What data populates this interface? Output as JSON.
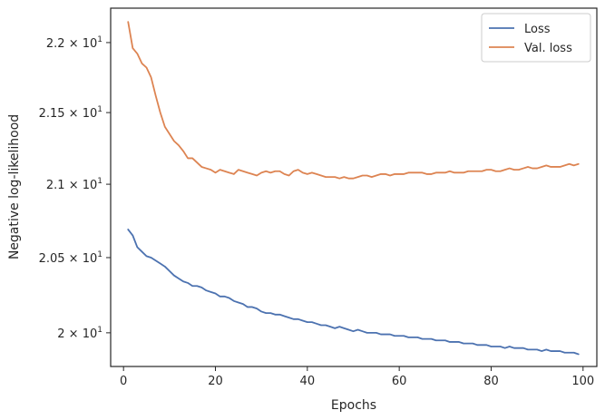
{
  "chart_data": {
    "type": "line",
    "title": "",
    "xlabel": "Epochs",
    "ylabel": "Negative log-likelihood",
    "xlim": [
      -2.8,
      103
    ],
    "ylim": [
      19.78,
      22.25
    ],
    "y_scale": "log",
    "x_ticks": [
      {
        "value": 0,
        "label": "0"
      },
      {
        "value": 20,
        "label": "20"
      },
      {
        "value": 40,
        "label": "40"
      },
      {
        "value": 60,
        "label": "60"
      },
      {
        "value": 80,
        "label": "80"
      },
      {
        "value": 100,
        "label": "100"
      }
    ],
    "y_ticks": [
      {
        "value": 20.0,
        "mantissa": "2",
        "exponent": "1"
      },
      {
        "value": 20.5,
        "mantissa": "2.05",
        "exponent": "1"
      },
      {
        "value": 21.0,
        "mantissa": "2.1",
        "exponent": "1"
      },
      {
        "value": 21.5,
        "mantissa": "2.15",
        "exponent": "1"
      },
      {
        "value": 22.0,
        "mantissa": "2.2",
        "exponent": "1"
      }
    ],
    "grid": false,
    "legend_position": "top-right",
    "series": [
      {
        "name": "Loss",
        "color": "#4c72b0",
        "x_start": 1,
        "values": [
          20.69,
          20.65,
          20.57,
          20.54,
          20.51,
          20.5,
          20.48,
          20.46,
          20.44,
          20.41,
          20.38,
          20.36,
          20.34,
          20.33,
          20.31,
          20.31,
          20.3,
          20.28,
          20.27,
          20.26,
          20.24,
          20.24,
          20.23,
          20.21,
          20.2,
          20.19,
          20.17,
          20.17,
          20.16,
          20.14,
          20.13,
          20.13,
          20.12,
          20.12,
          20.11,
          20.1,
          20.09,
          20.09,
          20.08,
          20.07,
          20.07,
          20.06,
          20.05,
          20.05,
          20.04,
          20.03,
          20.04,
          20.03,
          20.02,
          20.01,
          20.02,
          20.01,
          20.0,
          20.0,
          20.0,
          19.99,
          19.99,
          19.99,
          19.98,
          19.98,
          19.98,
          19.97,
          19.97,
          19.97,
          19.96,
          19.96,
          19.96,
          19.95,
          19.95,
          19.95,
          19.94,
          19.94,
          19.94,
          19.93,
          19.93,
          19.93,
          19.92,
          19.92,
          19.92,
          19.91,
          19.91,
          19.91,
          19.9,
          19.91,
          19.9,
          19.9,
          19.9,
          19.89,
          19.89,
          19.89,
          19.88,
          19.89,
          19.88,
          19.88,
          19.88,
          19.87,
          19.87,
          19.87,
          19.86
        ]
      },
      {
        "name": "Val. loss",
        "color": "#dd8452",
        "x_start": 1,
        "values": [
          22.15,
          21.96,
          21.92,
          21.85,
          21.82,
          21.75,
          21.62,
          21.5,
          21.4,
          21.35,
          21.3,
          21.27,
          21.23,
          21.18,
          21.18,
          21.15,
          21.12,
          21.11,
          21.1,
          21.08,
          21.1,
          21.09,
          21.08,
          21.07,
          21.1,
          21.09,
          21.08,
          21.07,
          21.06,
          21.08,
          21.09,
          21.08,
          21.09,
          21.09,
          21.07,
          21.06,
          21.09,
          21.1,
          21.08,
          21.07,
          21.08,
          21.07,
          21.06,
          21.05,
          21.05,
          21.05,
          21.04,
          21.05,
          21.04,
          21.04,
          21.05,
          21.06,
          21.06,
          21.05,
          21.06,
          21.07,
          21.07,
          21.06,
          21.07,
          21.07,
          21.07,
          21.08,
          21.08,
          21.08,
          21.08,
          21.07,
          21.07,
          21.08,
          21.08,
          21.08,
          21.09,
          21.08,
          21.08,
          21.08,
          21.09,
          21.09,
          21.09,
          21.09,
          21.1,
          21.1,
          21.09,
          21.09,
          21.1,
          21.11,
          21.1,
          21.1,
          21.11,
          21.12,
          21.11,
          21.11,
          21.12,
          21.13,
          21.12,
          21.12,
          21.12,
          21.13,
          21.14,
          21.13,
          21.14
        ]
      }
    ]
  }
}
